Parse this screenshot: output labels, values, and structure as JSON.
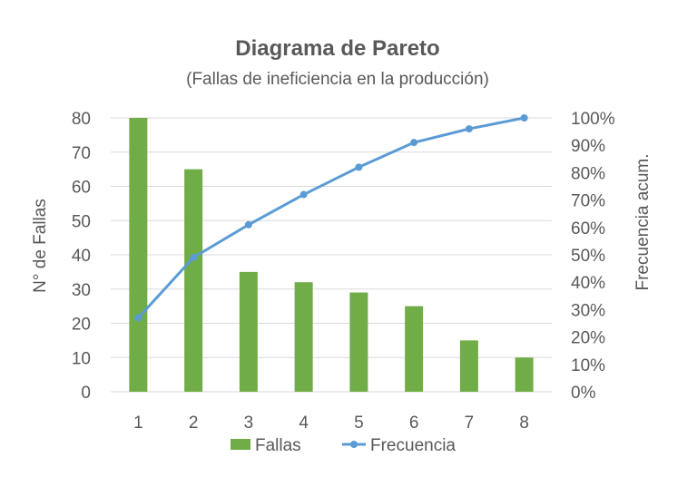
{
  "chart_data": {
    "type": "bar",
    "title": "Diagrama de Pareto",
    "subtitle": "(Fallas de ineficiencia en la producción)",
    "categories": [
      "1",
      "2",
      "3",
      "4",
      "5",
      "6",
      "7",
      "8"
    ],
    "series": [
      {
        "name": "Fallas",
        "type": "bar",
        "axis": "left",
        "color": "#70ad47",
        "values": [
          80,
          65,
          35,
          32,
          29,
          25,
          15,
          10
        ]
      },
      {
        "name": "Frecuencia",
        "type": "line",
        "axis": "right",
        "color": "#5b9bd5",
        "values": [
          27,
          49,
          61,
          72,
          82,
          91,
          96,
          100
        ]
      }
    ],
    "ylabel": "N° de Fallas",
    "ylabel_right": "Frecuencia acum.",
    "ylim": [
      0,
      80
    ],
    "yticks": [
      "0",
      "10",
      "20",
      "30",
      "40",
      "50",
      "60",
      "70",
      "80"
    ],
    "ylim_right": [
      0,
      100
    ],
    "yticks_right": [
      "0%",
      "10%",
      "20%",
      "30%",
      "40%",
      "50%",
      "60%",
      "70%",
      "80%",
      "90%",
      "100%"
    ],
    "grid": true,
    "legend_position": "bottom"
  }
}
